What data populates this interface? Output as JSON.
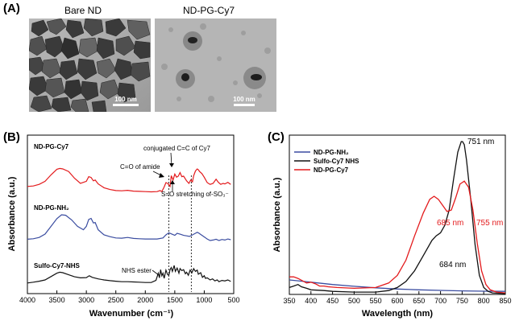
{
  "panelA": {
    "letter": "(A)",
    "left": {
      "title": "Bare ND",
      "scale": "100 nm"
    },
    "right": {
      "title": "ND-PG-Cy7",
      "scale": "100 nm"
    }
  },
  "chart_data": [
    {
      "panel": "(B)",
      "type": "line",
      "xlabel": "Wavenumber (cm⁻¹)",
      "ylabel": "Absorbance (a.u.)",
      "xlim": [
        4000,
        500
      ],
      "xticks": [
        "4000",
        "3500",
        "3000",
        "2500",
        "2000",
        "1500",
        "1000",
        "500"
      ],
      "legend": "none",
      "series": [
        {
          "name": "ND-PG-Cy7",
          "color": "#e31a1c",
          "offset": 3.55,
          "points": [
            [
              4000,
              0.3
            ],
            [
              3900,
              0.32
            ],
            [
              3800,
              0.38
            ],
            [
              3700,
              0.5
            ],
            [
              3600,
              0.75
            ],
            [
              3500,
              0.97
            ],
            [
              3450,
              1.0
            ],
            [
              3400,
              0.98
            ],
            [
              3300,
              0.88
            ],
            [
              3200,
              0.62
            ],
            [
              3100,
              0.42
            ],
            [
              3000,
              0.5
            ],
            [
              2960,
              0.68
            ],
            [
              2920,
              0.65
            ],
            [
              2880,
              0.52
            ],
            [
              2850,
              0.55
            ],
            [
              2800,
              0.4
            ],
            [
              2700,
              0.25
            ],
            [
              2600,
              0.18
            ],
            [
              2500,
              0.14
            ],
            [
              2400,
              0.13
            ],
            [
              2300,
              0.15
            ],
            [
              2200,
              0.12
            ],
            [
              2100,
              0.11
            ],
            [
              2000,
              0.1
            ],
            [
              1900,
              0.09
            ],
            [
              1800,
              0.1
            ],
            [
              1750,
              0.14
            ],
            [
              1720,
              0.1
            ],
            [
              1680,
              0.28
            ],
            [
              1650,
              0.45
            ],
            [
              1620,
              0.42
            ],
            [
              1580,
              0.3
            ],
            [
              1560,
              0.72
            ],
            [
              1530,
              0.55
            ],
            [
              1500,
              0.78
            ],
            [
              1470,
              0.66
            ],
            [
              1440,
              0.7
            ],
            [
              1410,
              0.84
            ],
            [
              1380,
              0.68
            ],
            [
              1350,
              0.7
            ],
            [
              1300,
              0.52
            ],
            [
              1260,
              0.42
            ],
            [
              1230,
              0.55
            ],
            [
              1200,
              0.48
            ],
            [
              1180,
              0.72
            ],
            [
              1150,
              0.9
            ],
            [
              1120,
              0.98
            ],
            [
              1100,
              0.95
            ],
            [
              1080,
              0.88
            ],
            [
              1040,
              0.8
            ],
            [
              1000,
              0.66
            ],
            [
              950,
              0.45
            ],
            [
              900,
              0.38
            ],
            [
              850,
              0.42
            ],
            [
              800,
              0.58
            ],
            [
              760,
              0.46
            ],
            [
              720,
              0.38
            ],
            [
              680,
              0.42
            ],
            [
              650,
              0.4
            ],
            [
              600,
              0.46
            ],
            [
              550,
              0.38
            ]
          ]
        },
        {
          "name": "ND-PG-NH₂",
          "color": "#3a4ca0",
          "offset": 1.75,
          "points": [
            [
              4000,
              0.05
            ],
            [
              3900,
              0.07
            ],
            [
              3800,
              0.12
            ],
            [
              3700,
              0.25
            ],
            [
              3600,
              0.55
            ],
            [
              3500,
              0.85
            ],
            [
              3420,
              1.0
            ],
            [
              3350,
              0.98
            ],
            [
              3250,
              0.8
            ],
            [
              3150,
              0.55
            ],
            [
              3050,
              0.42
            ],
            [
              3000,
              0.55
            ],
            [
              2960,
              0.82
            ],
            [
              2920,
              0.86
            ],
            [
              2880,
              0.68
            ],
            [
              2850,
              0.7
            ],
            [
              2800,
              0.42
            ],
            [
              2700,
              0.22
            ],
            [
              2600,
              0.15
            ],
            [
              2500,
              0.1
            ],
            [
              2400,
              0.09
            ],
            [
              2300,
              0.12
            ],
            [
              2200,
              0.08
            ],
            [
              2100,
              0.07
            ],
            [
              2000,
              0.06
            ],
            [
              1900,
              0.06
            ],
            [
              1800,
              0.06
            ],
            [
              1700,
              0.1
            ],
            [
              1650,
              0.22
            ],
            [
              1600,
              0.3
            ],
            [
              1560,
              0.26
            ],
            [
              1500,
              0.2
            ],
            [
              1460,
              0.28
            ],
            [
              1400,
              0.24
            ],
            [
              1350,
              0.2
            ],
            [
              1300,
              0.18
            ],
            [
              1250,
              0.16
            ],
            [
              1200,
              0.22
            ],
            [
              1150,
              0.28
            ],
            [
              1120,
              0.32
            ],
            [
              1100,
              0.3
            ],
            [
              1050,
              0.22
            ],
            [
              1000,
              0.14
            ],
            [
              950,
              0.06
            ],
            [
              900,
              0.0
            ],
            [
              850,
              0.02
            ],
            [
              800,
              0.05
            ],
            [
              750,
              0.0
            ],
            [
              700,
              0.04
            ],
            [
              650,
              0.02
            ],
            [
              600,
              0.06
            ],
            [
              550,
              0.03
            ]
          ]
        },
        {
          "name": "Sulfo-Cy7-NHS",
          "color": "#111111",
          "offset": 0,
          "points": [
            [
              4000,
              0.1
            ],
            [
              3900,
              0.13
            ],
            [
              3800,
              0.17
            ],
            [
              3700,
              0.22
            ],
            [
              3600,
              0.35
            ],
            [
              3500,
              0.48
            ],
            [
              3450,
              0.52
            ],
            [
              3400,
              0.5
            ],
            [
              3300,
              0.42
            ],
            [
              3200,
              0.34
            ],
            [
              3100,
              0.3
            ],
            [
              3000,
              0.31
            ],
            [
              2950,
              0.38
            ],
            [
              2900,
              0.32
            ],
            [
              2800,
              0.26
            ],
            [
              2700,
              0.22
            ],
            [
              2600,
              0.19
            ],
            [
              2500,
              0.17
            ],
            [
              2400,
              0.15
            ],
            [
              2300,
              0.15
            ],
            [
              2200,
              0.14
            ],
            [
              2100,
              0.13
            ],
            [
              2000,
              0.12
            ],
            [
              1900,
              0.12
            ],
            [
              1820,
              0.2
            ],
            [
              1780,
              0.48
            ],
            [
              1760,
              0.3
            ],
            [
              1740,
              0.62
            ],
            [
              1720,
              0.38
            ],
            [
              1700,
              0.48
            ],
            [
              1680,
              0.28
            ],
            [
              1650,
              0.6
            ],
            [
              1620,
              0.42
            ],
            [
              1600,
              0.4
            ],
            [
              1580,
              0.62
            ],
            [
              1560,
              0.7
            ],
            [
              1540,
              0.55
            ],
            [
              1510,
              0.78
            ],
            [
              1490,
              0.55
            ],
            [
              1460,
              0.68
            ],
            [
              1430,
              0.48
            ],
            [
              1410,
              0.66
            ],
            [
              1380,
              0.58
            ],
            [
              1350,
              0.62
            ],
            [
              1320,
              0.46
            ],
            [
              1300,
              0.52
            ],
            [
              1270,
              0.4
            ],
            [
              1240,
              0.6
            ],
            [
              1210,
              0.5
            ],
            [
              1180,
              0.66
            ],
            [
              1150,
              0.55
            ],
            [
              1120,
              0.6
            ],
            [
              1100,
              0.44
            ],
            [
              1060,
              0.5
            ],
            [
              1030,
              0.32
            ],
            [
              1000,
              0.38
            ],
            [
              980,
              0.28
            ],
            [
              950,
              0.3
            ],
            [
              900,
              0.22
            ],
            [
              860,
              0.26
            ],
            [
              820,
              0.18
            ],
            [
              780,
              0.22
            ],
            [
              750,
              0.15
            ],
            [
              700,
              0.2
            ],
            [
              650,
              0.18
            ],
            [
              600,
              0.22
            ],
            [
              550,
              0.16
            ]
          ]
        }
      ],
      "annotations": {
        "cy7": "ND-PG-Cy7",
        "nh2": "ND-PG-NH₂",
        "sulfo": "Sulfo-Cy7-NHS",
        "conj": "conjugated C=C of Cy7",
        "amide": "C=O of amide",
        "so": "S=O stretching of-SO₃⁻",
        "nhs": "NHS ester"
      }
    },
    {
      "panel": "(C)",
      "type": "line",
      "xlabel": "Wavelength (nm)",
      "ylabel": "Absorbance (a.u.)",
      "xlim": [
        350,
        850
      ],
      "xticks": [
        "350",
        "400",
        "450",
        "500",
        "550",
        "600",
        "650",
        "700",
        "750",
        "800",
        "850"
      ],
      "legend": "top-left",
      "series": [
        {
          "name": "ND-PG-NH₂",
          "color": "#3a4ca0",
          "points": [
            [
              350,
              0.09
            ],
            [
              400,
              0.075
            ],
            [
              450,
              0.06
            ],
            [
              500,
              0.048
            ],
            [
              550,
              0.038
            ],
            [
              600,
              0.03
            ],
            [
              650,
              0.025
            ],
            [
              700,
              0.021
            ],
            [
              750,
              0.018
            ],
            [
              800,
              0.016
            ],
            [
              850,
              0.015
            ]
          ]
        },
        {
          "name": "Sulfo-Cy7 NHS",
          "color": "#111111",
          "points": [
            [
              350,
              0.04
            ],
            [
              360,
              0.05
            ],
            [
              370,
              0.06
            ],
            [
              378,
              0.045
            ],
            [
              390,
              0.035
            ],
            [
              400,
              0.025
            ],
            [
              430,
              0.02
            ],
            [
              450,
              0.015
            ],
            [
              500,
              0.01
            ],
            [
              550,
              0.01
            ],
            [
              580,
              0.02
            ],
            [
              600,
              0.04
            ],
            [
              620,
              0.08
            ],
            [
              640,
              0.15
            ],
            [
              660,
              0.25
            ],
            [
              680,
              0.35
            ],
            [
              690,
              0.38
            ],
            [
              700,
              0.4
            ],
            [
              710,
              0.45
            ],
            [
              720,
              0.55
            ],
            [
              730,
              0.75
            ],
            [
              740,
              0.93
            ],
            [
              748,
              1.0
            ],
            [
              751,
              1.0
            ],
            [
              755,
              0.98
            ],
            [
              760,
              0.88
            ],
            [
              770,
              0.62
            ],
            [
              780,
              0.32
            ],
            [
              790,
              0.12
            ],
            [
              800,
              0.04
            ],
            [
              810,
              0.015
            ],
            [
              820,
              0.005
            ],
            [
              850,
              0.0
            ]
          ]
        },
        {
          "name": "ND-PG-Cy7",
          "color": "#e31a1c",
          "points": [
            [
              350,
              0.11
            ],
            [
              360,
              0.11
            ],
            [
              370,
              0.1
            ],
            [
              380,
              0.085
            ],
            [
              390,
              0.07
            ],
            [
              400,
              0.075
            ],
            [
              410,
              0.065
            ],
            [
              420,
              0.05
            ],
            [
              430,
              0.05
            ],
            [
              440,
              0.045
            ],
            [
              460,
              0.04
            ],
            [
              500,
              0.035
            ],
            [
              550,
              0.04
            ],
            [
              580,
              0.07
            ],
            [
              600,
              0.12
            ],
            [
              620,
              0.22
            ],
            [
              640,
              0.38
            ],
            [
              660,
              0.53
            ],
            [
              675,
              0.62
            ],
            [
              685,
              0.64
            ],
            [
              695,
              0.62
            ],
            [
              705,
              0.58
            ],
            [
              715,
              0.54
            ],
            [
              725,
              0.55
            ],
            [
              735,
              0.63
            ],
            [
              745,
              0.72
            ],
            [
              755,
              0.74
            ],
            [
              765,
              0.7
            ],
            [
              775,
              0.55
            ],
            [
              785,
              0.33
            ],
            [
              795,
              0.15
            ],
            [
              805,
              0.06
            ],
            [
              815,
              0.025
            ],
            [
              830,
              0.01
            ],
            [
              850,
              0.005
            ]
          ]
        }
      ],
      "annotations": {
        "p751": "751 nm",
        "p685": "685 nm",
        "p755": "755 nm",
        "p684": "684 nm"
      }
    }
  ]
}
